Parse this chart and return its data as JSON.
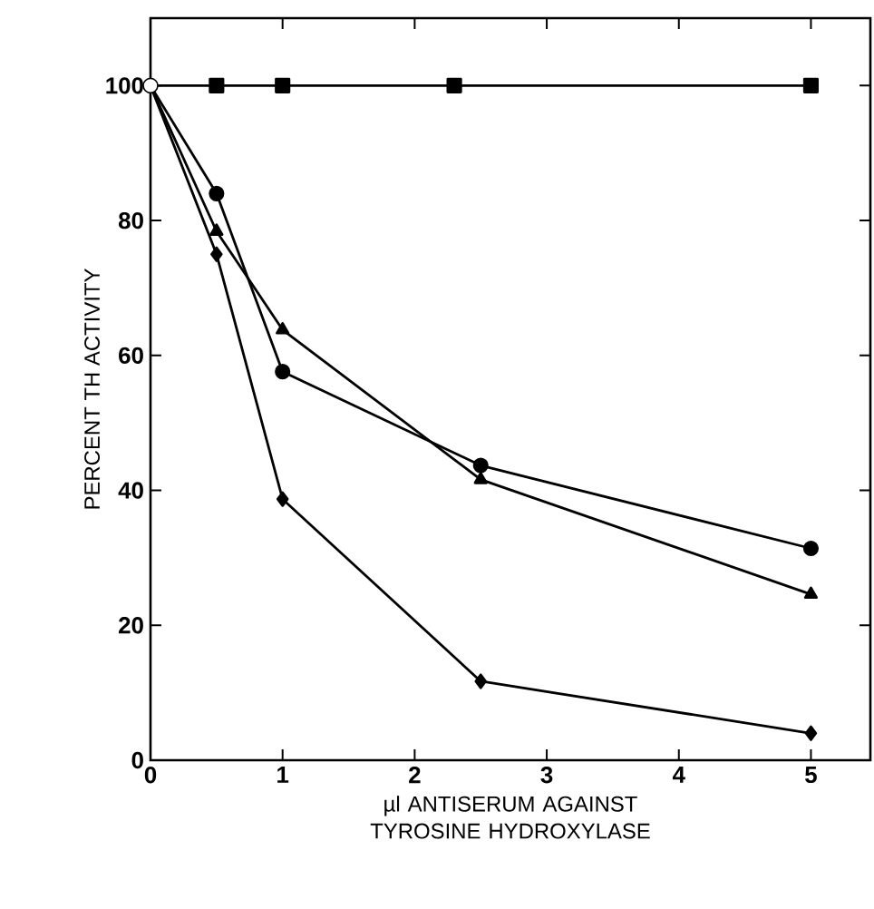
{
  "chart_data": {
    "type": "line",
    "xlabel": "µl ANTISERUM AGAINST TYROSINE HYDROXYLASE",
    "ylabel": "PERCENT TH ACTIVITY",
    "xlim": [
      0,
      5.45
    ],
    "ylim": [
      0,
      110
    ],
    "xticks": [
      0,
      1,
      2,
      3,
      4,
      5
    ],
    "yticks": [
      0,
      20,
      40,
      60,
      80,
      100
    ],
    "series": [
      {
        "color": "#000000",
        "marker": "square",
        "x": [
          0,
          0.5,
          1,
          2.3,
          5
        ],
        "values": [
          100,
          100,
          100,
          100,
          100
        ]
      },
      {
        "color": "#000000",
        "marker": "circle",
        "x": [
          0,
          0.5,
          1,
          2.5,
          5
        ],
        "values": [
          100,
          84,
          57.6,
          43.7,
          31.4
        ]
      },
      {
        "color": "#000000",
        "marker": "triangle",
        "x": [
          0,
          0.5,
          1,
          2.5,
          5
        ],
        "values": [
          100,
          78.4,
          63.8,
          41.6,
          24.6
        ]
      },
      {
        "color": "#000000",
        "marker": "diamond",
        "x": [
          0,
          0.5,
          1,
          2.5,
          5
        ],
        "values": [
          100,
          75,
          38.7,
          11.7,
          4
        ]
      },
      {
        "type": "scatter",
        "color": "#ffffff",
        "marker": "circle",
        "x": [
          0
        ],
        "values": [
          100
        ]
      }
    ]
  }
}
